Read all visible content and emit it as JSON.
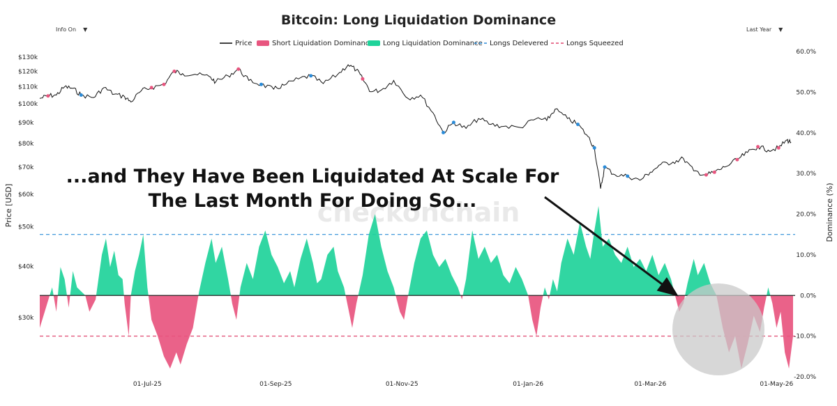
{
  "controls": {
    "info": "Info On",
    "range": "Last Year"
  },
  "chart_data": {
    "type": "line",
    "title": "Bitcoin: Long Liquidation Dominance",
    "legend": {
      "placement": "top-center",
      "entries": [
        {
          "name": "Price",
          "color": "#000000",
          "style": "line"
        },
        {
          "name": "Short Liquidation Dominance",
          "color": "#e8557f",
          "style": "area"
        },
        {
          "name": "Long Liquidation Dominance",
          "color": "#1fd39a",
          "style": "area"
        },
        {
          "name": "Longs Delevered",
          "color": "#2a8bd8",
          "style": "dashed"
        },
        {
          "name": "Longs Squeezed",
          "color": "#e0456e",
          "style": "dashed"
        }
      ]
    },
    "ylabel_left": "Price [USD]",
    "ylabel_right": "Dominance (%)",
    "y_left_scale": "log",
    "y_left_ticks": [
      {
        "v": 30000,
        "label": "$30k"
      },
      {
        "v": 40000,
        "label": "$40k"
      },
      {
        "v": 50000,
        "label": "$50k"
      },
      {
        "v": 60000,
        "label": "$60k"
      },
      {
        "v": 70000,
        "label": "$70k"
      },
      {
        "v": 80000,
        "label": "$80k"
      },
      {
        "v": 90000,
        "label": "$90k"
      },
      {
        "v": 100000,
        "label": "$100k"
      },
      {
        "v": 110000,
        "label": "$110k"
      },
      {
        "v": 120000,
        "label": "$120k"
      },
      {
        "v": 130000,
        "label": "$130k"
      }
    ],
    "y_right_ticks": [
      {
        "v": 60,
        "label": "60.0%"
      },
      {
        "v": 50,
        "label": "50.0%"
      },
      {
        "v": 40,
        "label": "40.0%"
      },
      {
        "v": 30,
        "label": "30.0%"
      },
      {
        "v": 20,
        "label": "20.0%"
      },
      {
        "v": 10,
        "label": "10.0%"
      },
      {
        "v": 0,
        "label": "0.0%"
      },
      {
        "v": -10,
        "label": "-10.0%"
      },
      {
        "v": -20,
        "label": "-20.0%"
      }
    ],
    "x_ticks": [
      {
        "date": "2025-07-01",
        "label": "01-Jul-25"
      },
      {
        "date": "2025-09-01",
        "label": "01-Sep-25"
      },
      {
        "date": "2025-11-01",
        "label": "01-Nov-25"
      },
      {
        "date": "2026-01-01",
        "label": "01-Jan-26"
      },
      {
        "date": "2026-03-01",
        "label": "01-Mar-26"
      },
      {
        "date": "2026-05-01",
        "label": "01-May-26"
      }
    ],
    "x_range": [
      "2025-05-10",
      "2026-05-10"
    ],
    "reference_lines": {
      "longs_delevered": 15,
      "longs_squeezed": -10
    },
    "price_series": [
      [
        "2025-05-10",
        103000
      ],
      [
        "2025-05-14",
        104500
      ],
      [
        "2025-05-18",
        105000
      ],
      [
        "2025-05-22",
        110000
      ],
      [
        "2025-05-26",
        109000
      ],
      [
        "2025-05-30",
        105000
      ],
      [
        "2025-06-05",
        103500
      ],
      [
        "2025-06-10",
        109500
      ],
      [
        "2025-06-15",
        105500
      ],
      [
        "2025-06-20",
        104000
      ],
      [
        "2025-06-23",
        101000
      ],
      [
        "2025-06-28",
        107500
      ],
      [
        "2025-07-03",
        109500
      ],
      [
        "2025-07-09",
        111500
      ],
      [
        "2025-07-14",
        120000
      ],
      [
        "2025-07-18",
        118500
      ],
      [
        "2025-07-24",
        118000
      ],
      [
        "2025-07-31",
        116500
      ],
      [
        "2025-08-03",
        113000
      ],
      [
        "2025-08-09",
        117000
      ],
      [
        "2025-08-14",
        121500
      ],
      [
        "2025-08-19",
        114000
      ],
      [
        "2025-08-25",
        111500
      ],
      [
        "2025-08-31",
        108500
      ],
      [
        "2025-09-05",
        111000
      ],
      [
        "2025-09-12",
        115000
      ],
      [
        "2025-09-18",
        117000
      ],
      [
        "2025-09-24",
        112000
      ],
      [
        "2025-10-01",
        118000
      ],
      [
        "2025-10-06",
        124500
      ],
      [
        "2025-10-10",
        121000
      ],
      [
        "2025-10-13",
        115000
      ],
      [
        "2025-10-17",
        107000
      ],
      [
        "2025-10-22",
        108000
      ],
      [
        "2025-10-28",
        114000
      ],
      [
        "2025-11-04",
        103000
      ],
      [
        "2025-11-10",
        105000
      ],
      [
        "2025-11-16",
        95000
      ],
      [
        "2025-11-21",
        85000
      ],
      [
        "2025-11-26",
        90000
      ],
      [
        "2025-12-02",
        87000
      ],
      [
        "2025-12-08",
        92000
      ],
      [
        "2025-12-14",
        89000
      ],
      [
        "2025-12-20",
        88000
      ],
      [
        "2025-12-28",
        87500
      ],
      [
        "2026-01-05",
        92000
      ],
      [
        "2026-01-10",
        91000
      ],
      [
        "2026-01-14",
        97000
      ],
      [
        "2026-01-20",
        92000
      ],
      [
        "2026-01-25",
        89000
      ],
      [
        "2026-01-30",
        83000
      ],
      [
        "2026-02-02",
        78000
      ],
      [
        "2026-02-05",
        62000
      ],
      [
        "2026-02-07",
        70000
      ],
      [
        "2026-02-12",
        67000
      ],
      [
        "2026-02-18",
        66500
      ],
      [
        "2026-02-24",
        65000
      ],
      [
        "2026-03-01",
        68000
      ],
      [
        "2026-03-06",
        71000
      ],
      [
        "2026-03-12",
        72000
      ],
      [
        "2026-03-17",
        73500
      ],
      [
        "2026-03-22",
        68500
      ],
      [
        "2026-03-28",
        67000
      ],
      [
        "2026-04-01",
        68000
      ],
      [
        "2026-04-06",
        70000
      ],
      [
        "2026-04-12",
        73000
      ],
      [
        "2026-04-17",
        76000
      ],
      [
        "2026-04-22",
        78500
      ],
      [
        "2026-04-27",
        77000
      ],
      [
        "2026-05-02",
        78000
      ],
      [
        "2026-05-06",
        81500
      ],
      [
        "2026-05-08",
        80500
      ]
    ],
    "dominance_series": [
      [
        "2025-05-10",
        -8
      ],
      [
        "2025-05-13",
        -3
      ],
      [
        "2025-05-16",
        2
      ],
      [
        "2025-05-18",
        -4
      ],
      [
        "2025-05-20",
        7
      ],
      [
        "2025-05-22",
        4
      ],
      [
        "2025-05-24",
        -3
      ],
      [
        "2025-05-26",
        6
      ],
      [
        "2025-05-28",
        2
      ],
      [
        "2025-06-01",
        0
      ],
      [
        "2025-06-03",
        -4
      ],
      [
        "2025-06-06",
        -1
      ],
      [
        "2025-06-09",
        10
      ],
      [
        "2025-06-11",
        14
      ],
      [
        "2025-06-13",
        7
      ],
      [
        "2025-06-15",
        11
      ],
      [
        "2025-06-17",
        5
      ],
      [
        "2025-06-19",
        4
      ],
      [
        "2025-06-20",
        -2
      ],
      [
        "2025-06-22",
        -10
      ],
      [
        "2025-06-23",
        0
      ],
      [
        "2025-06-25",
        6
      ],
      [
        "2025-06-27",
        10
      ],
      [
        "2025-06-29",
        15
      ],
      [
        "2025-07-01",
        2
      ],
      [
        "2025-07-03",
        -6
      ],
      [
        "2025-07-06",
        -10
      ],
      [
        "2025-07-09",
        -15
      ],
      [
        "2025-07-12",
        -18
      ],
      [
        "2025-07-15",
        -14
      ],
      [
        "2025-07-17",
        -17
      ],
      [
        "2025-07-20",
        -12
      ],
      [
        "2025-07-23",
        -8
      ],
      [
        "2025-07-26",
        1
      ],
      [
        "2025-07-29",
        8
      ],
      [
        "2025-08-01",
        14
      ],
      [
        "2025-08-03",
        8
      ],
      [
        "2025-08-06",
        12
      ],
      [
        "2025-08-09",
        4
      ],
      [
        "2025-08-11",
        -2
      ],
      [
        "2025-08-13",
        -6
      ],
      [
        "2025-08-15",
        2
      ],
      [
        "2025-08-18",
        8
      ],
      [
        "2025-08-21",
        4
      ],
      [
        "2025-08-24",
        12
      ],
      [
        "2025-08-27",
        16
      ],
      [
        "2025-08-30",
        10
      ],
      [
        "2025-09-02",
        7
      ],
      [
        "2025-09-05",
        3
      ],
      [
        "2025-09-08",
        6
      ],
      [
        "2025-09-10",
        2
      ],
      [
        "2025-09-13",
        9
      ],
      [
        "2025-09-16",
        14
      ],
      [
        "2025-09-19",
        8
      ],
      [
        "2025-09-21",
        3
      ],
      [
        "2025-09-23",
        4
      ],
      [
        "2025-09-26",
        10
      ],
      [
        "2025-09-29",
        12
      ],
      [
        "2025-10-01",
        6
      ],
      [
        "2025-10-04",
        2
      ],
      [
        "2025-10-06",
        -3
      ],
      [
        "2025-10-08",
        -8
      ],
      [
        "2025-10-10",
        -2
      ],
      [
        "2025-10-13",
        5
      ],
      [
        "2025-10-16",
        15
      ],
      [
        "2025-10-19",
        20
      ],
      [
        "2025-10-22",
        12
      ],
      [
        "2025-10-25",
        6
      ],
      [
        "2025-10-28",
        2
      ],
      [
        "2025-10-31",
        -4
      ],
      [
        "2025-11-02",
        -6
      ],
      [
        "2025-11-04",
        0
      ],
      [
        "2025-11-07",
        8
      ],
      [
        "2025-11-10",
        14
      ],
      [
        "2025-11-13",
        16
      ],
      [
        "2025-11-16",
        10
      ],
      [
        "2025-11-19",
        7
      ],
      [
        "2025-11-22",
        9
      ],
      [
        "2025-11-25",
        5
      ],
      [
        "2025-11-28",
        2
      ],
      [
        "2025-11-30",
        -1
      ],
      [
        "2025-12-02",
        4
      ],
      [
        "2025-12-05",
        16
      ],
      [
        "2025-12-08",
        9
      ],
      [
        "2025-12-11",
        12
      ],
      [
        "2025-12-14",
        8
      ],
      [
        "2025-12-17",
        10
      ],
      [
        "2025-12-20",
        5
      ],
      [
        "2025-12-23",
        3
      ],
      [
        "2025-12-26",
        7
      ],
      [
        "2025-12-29",
        4
      ],
      [
        "2026-01-01",
        0
      ],
      [
        "2026-01-03",
        -6
      ],
      [
        "2026-01-05",
        -10
      ],
      [
        "2026-01-07",
        -3
      ],
      [
        "2026-01-09",
        2
      ],
      [
        "2026-01-11",
        -1
      ],
      [
        "2026-01-13",
        4
      ],
      [
        "2026-01-15",
        1
      ],
      [
        "2026-01-17",
        8
      ],
      [
        "2026-01-20",
        14
      ],
      [
        "2026-01-23",
        10
      ],
      [
        "2026-01-26",
        18
      ],
      [
        "2026-01-29",
        12
      ],
      [
        "2026-01-31",
        9
      ],
      [
        "2026-02-02",
        16
      ],
      [
        "2026-02-04",
        22
      ],
      [
        "2026-02-06",
        12
      ],
      [
        "2026-02-09",
        14
      ],
      [
        "2026-02-12",
        10
      ],
      [
        "2026-02-15",
        8
      ],
      [
        "2026-02-18",
        12
      ],
      [
        "2026-02-21",
        7
      ],
      [
        "2026-02-24",
        9
      ],
      [
        "2026-02-27",
        6
      ],
      [
        "2026-03-02",
        10
      ],
      [
        "2026-03-05",
        5
      ],
      [
        "2026-03-08",
        8
      ],
      [
        "2026-03-11",
        4
      ],
      [
        "2026-03-13",
        0
      ],
      [
        "2026-03-15",
        -4
      ],
      [
        "2026-03-17",
        -2
      ],
      [
        "2026-03-19",
        3
      ],
      [
        "2026-03-22",
        9
      ],
      [
        "2026-03-24",
        5
      ],
      [
        "2026-03-27",
        8
      ],
      [
        "2026-03-30",
        3
      ],
      [
        "2026-04-02",
        0
      ],
      [
        "2026-04-05",
        -8
      ],
      [
        "2026-04-08",
        -14
      ],
      [
        "2026-04-11",
        -10
      ],
      [
        "2026-04-14",
        -18
      ],
      [
        "2026-04-17",
        -12
      ],
      [
        "2026-04-20",
        -5
      ],
      [
        "2026-04-23",
        -9
      ],
      [
        "2026-04-25",
        -3
      ],
      [
        "2026-04-27",
        2
      ],
      [
        "2026-04-29",
        -2
      ],
      [
        "2026-05-01",
        -8
      ],
      [
        "2026-05-03",
        -4
      ],
      [
        "2026-05-05",
        -14
      ],
      [
        "2026-05-07",
        -18
      ],
      [
        "2026-05-09",
        -10
      ]
    ],
    "annotations": [
      {
        "text": "...and They Have Been Liquidated At Scale For"
      },
      {
        "text": "The Last Month For Doing So..."
      }
    ],
    "watermark": "checkonchain"
  }
}
